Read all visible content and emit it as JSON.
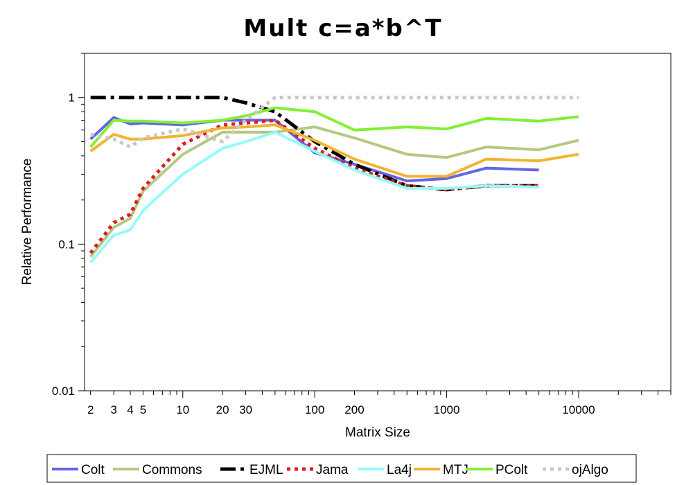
{
  "chart_data": {
    "type": "line",
    "title": "Mult c=a*b^T",
    "xlabel": "Matrix Size",
    "ylabel": "Relative Performance",
    "xscale": "log",
    "yscale": "log",
    "xlim": [
      1.8,
      50000
    ],
    "ylim": [
      0.01,
      2
    ],
    "x_tick_labels": [
      {
        "value": 2,
        "label": "2"
      },
      {
        "value": 3,
        "label": "3"
      },
      {
        "value": 4,
        "label": "4"
      },
      {
        "value": 5,
        "label": "5"
      },
      {
        "value": 10,
        "label": "10"
      },
      {
        "value": 20,
        "label": "20"
      },
      {
        "value": 30,
        "label": "30"
      },
      {
        "value": 100,
        "label": "100"
      },
      {
        "value": 200,
        "label": "200"
      },
      {
        "value": 1000,
        "label": "1000"
      },
      {
        "value": 10000,
        "label": "10000"
      }
    ],
    "y_tick_labels": [
      {
        "value": 0.01,
        "label": "0.01"
      },
      {
        "value": 0.1,
        "label": "0.1"
      },
      {
        "value": 1,
        "label": "1"
      }
    ],
    "grid": false,
    "legend_position": "bottom",
    "series": [
      {
        "name": "Colt",
        "color": "#6464e6",
        "dash": "solid",
        "x": [
          2,
          3,
          4,
          5,
          10,
          20,
          30,
          50,
          100,
          200,
          500,
          1000,
          2000,
          5000
        ],
        "y": [
          0.52,
          0.73,
          0.66,
          0.67,
          0.65,
          0.7,
          0.7,
          0.7,
          0.42,
          0.35,
          0.27,
          0.28,
          0.33,
          0.32
        ]
      },
      {
        "name": "Commons",
        "color": "#b4c882",
        "dash": "solid",
        "x": [
          2,
          3,
          4,
          5,
          10,
          20,
          30,
          50,
          100,
          200,
          500,
          1000,
          2000,
          5000,
          10000
        ],
        "y": [
          0.082,
          0.13,
          0.15,
          0.23,
          0.41,
          0.58,
          0.58,
          0.58,
          0.63,
          0.53,
          0.41,
          0.39,
          0.46,
          0.44,
          0.51
        ]
      },
      {
        "name": "EJML",
        "color": "#000000",
        "dash": "dashdot",
        "x": [
          2,
          3,
          4,
          5,
          10,
          20,
          30,
          50,
          100,
          200,
          500,
          1000,
          2000,
          5000
        ],
        "y": [
          1.0,
          1.0,
          1.0,
          1.0,
          1.0,
          1.0,
          0.92,
          0.8,
          0.5,
          0.35,
          0.25,
          0.235,
          0.25,
          0.25
        ]
      },
      {
        "name": "Jama",
        "color": "#dc1e1e",
        "dash": "dot",
        "x": [
          2,
          3,
          4,
          5,
          10,
          20,
          30,
          50,
          100,
          200,
          500,
          1000,
          2000,
          5000
        ],
        "y": [
          0.087,
          0.14,
          0.16,
          0.24,
          0.48,
          0.65,
          0.67,
          0.7,
          0.45,
          0.33,
          0.25,
          0.235,
          0.25,
          0.25
        ]
      },
      {
        "name": "La4j",
        "color": "#96fafa",
        "dash": "solid",
        "x": [
          2,
          3,
          4,
          5,
          10,
          20,
          30,
          50,
          100,
          200,
          500,
          1000,
          2000,
          5000
        ],
        "y": [
          0.075,
          0.115,
          0.125,
          0.17,
          0.3,
          0.45,
          0.5,
          0.58,
          0.43,
          0.32,
          0.24,
          0.24,
          0.25,
          0.245
        ]
      },
      {
        "name": "MTJ",
        "color": "#f0b432",
        "dash": "solid",
        "x": [
          2,
          3,
          4,
          5,
          10,
          20,
          30,
          50,
          100,
          200,
          500,
          1000,
          2000,
          5000,
          10000
        ],
        "y": [
          0.43,
          0.56,
          0.52,
          0.52,
          0.55,
          0.62,
          0.63,
          0.65,
          0.51,
          0.38,
          0.29,
          0.29,
          0.38,
          0.37,
          0.41
        ]
      },
      {
        "name": "PColt",
        "color": "#82f032",
        "dash": "solid",
        "x": [
          2,
          3,
          4,
          5,
          10,
          20,
          30,
          50,
          100,
          200,
          500,
          1000,
          2000,
          5000,
          10000
        ],
        "y": [
          0.46,
          0.7,
          0.69,
          0.69,
          0.67,
          0.7,
          0.75,
          0.85,
          0.8,
          0.6,
          0.63,
          0.61,
          0.72,
          0.69,
          0.74
        ]
      },
      {
        "name": "ojAlgo",
        "color": "#c8c8c8",
        "dash": "dot",
        "x": [
          2,
          3,
          4,
          5,
          10,
          20,
          30,
          50,
          100,
          200,
          500,
          1000,
          2000,
          5000,
          10000
        ],
        "y": [
          0.56,
          0.52,
          0.46,
          0.53,
          0.61,
          0.5,
          0.7,
          1.0,
          1.0,
          1.0,
          1.0,
          1.0,
          1.0,
          1.0,
          1.0
        ]
      }
    ]
  }
}
